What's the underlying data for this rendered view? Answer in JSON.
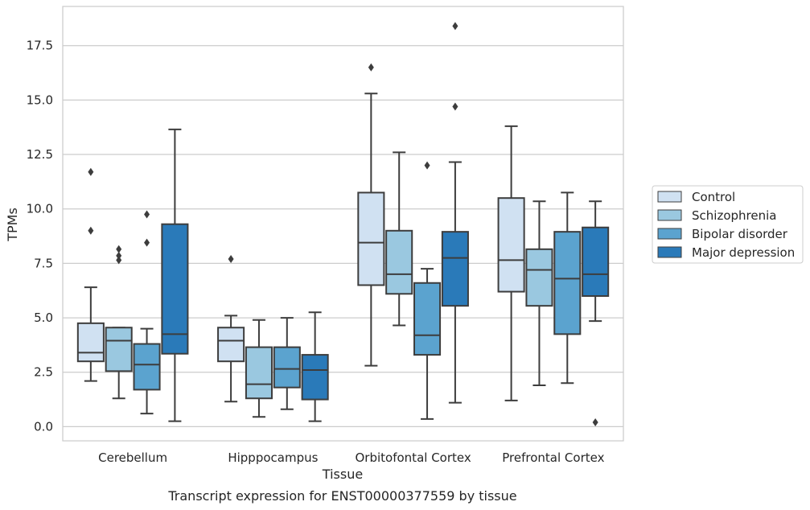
{
  "caption": "Transcript expression for ENST00000377559 by tissue",
  "chart_data": {
    "type": "box",
    "xlabel": "Tissue",
    "ylabel": "TPMs",
    "ylim": [
      -0.65,
      19.3
    ],
    "yticks": [
      0.0,
      2.5,
      5.0,
      7.5,
      10.0,
      12.5,
      15.0,
      17.5
    ],
    "ytick_labels": [
      "0.0",
      "2.5",
      "5.0",
      "7.5",
      "10.0",
      "12.5",
      "15.0",
      "17.5"
    ],
    "grid": "horizontal",
    "legend_position": "right",
    "categories": [
      "Cerebellum",
      "Hipppocampus",
      "Orbitofontal Cortex",
      "Prefrontal Cortex"
    ],
    "series": [
      {
        "name": "Control",
        "color": "#d0e1f2",
        "boxes": [
          {
            "whislo": 2.1,
            "q1": 3.0,
            "med": 3.4,
            "q3": 4.75,
            "whishi": 6.4,
            "fliers": [
              9.0,
              11.7
            ]
          },
          {
            "whislo": 1.15,
            "q1": 3.0,
            "med": 3.95,
            "q3": 4.55,
            "whishi": 5.1,
            "fliers": [
              7.7
            ]
          },
          {
            "whislo": 2.8,
            "q1": 6.5,
            "med": 8.45,
            "q3": 10.75,
            "whishi": 15.3,
            "fliers": [
              16.5
            ]
          },
          {
            "whislo": 1.2,
            "q1": 6.2,
            "med": 7.65,
            "q3": 10.5,
            "whishi": 13.8,
            "fliers": []
          }
        ]
      },
      {
        "name": "Schizophrenia",
        "color": "#9ac8e0",
        "boxes": [
          {
            "whislo": 1.3,
            "q1": 2.55,
            "med": 3.95,
            "q3": 4.55,
            "whishi": 4.55,
            "fliers": [
              7.65,
              7.85,
              8.15
            ]
          },
          {
            "whislo": 0.45,
            "q1": 1.3,
            "med": 1.95,
            "q3": 3.65,
            "whishi": 4.9,
            "fliers": []
          },
          {
            "whislo": 4.65,
            "q1": 6.1,
            "med": 7.0,
            "q3": 9.0,
            "whishi": 12.6,
            "fliers": []
          },
          {
            "whislo": 1.9,
            "q1": 5.55,
            "med": 7.2,
            "q3": 8.15,
            "whishi": 10.35,
            "fliers": []
          }
        ]
      },
      {
        "name": "Bipolar disorder",
        "color": "#5ba3cf",
        "boxes": [
          {
            "whislo": 0.6,
            "q1": 1.7,
            "med": 2.85,
            "q3": 3.8,
            "whishi": 4.5,
            "fliers": [
              8.45,
              9.75
            ]
          },
          {
            "whislo": 0.8,
            "q1": 1.8,
            "med": 2.65,
            "q3": 3.65,
            "whishi": 5.0,
            "fliers": []
          },
          {
            "whislo": 0.35,
            "q1": 3.3,
            "med": 4.2,
            "q3": 6.6,
            "whishi": 7.25,
            "fliers": [
              12.0
            ]
          },
          {
            "whislo": 2.0,
            "q1": 4.25,
            "med": 6.8,
            "q3": 8.95,
            "whishi": 10.75,
            "fliers": []
          }
        ]
      },
      {
        "name": "Major depression",
        "color": "#2a7ab9",
        "boxes": [
          {
            "whislo": 0.25,
            "q1": 3.35,
            "med": 4.25,
            "q3": 9.3,
            "whishi": 13.65,
            "fliers": []
          },
          {
            "whislo": 0.25,
            "q1": 1.25,
            "med": 2.6,
            "q3": 3.3,
            "whishi": 5.25,
            "fliers": []
          },
          {
            "whislo": 1.1,
            "q1": 5.55,
            "med": 7.75,
            "q3": 8.95,
            "whishi": 12.15,
            "fliers": [
              14.7,
              18.4
            ]
          },
          {
            "whislo": 4.85,
            "q1": 6.0,
            "med": 7.0,
            "q3": 9.15,
            "whishi": 10.35,
            "fliers": [
              0.2
            ]
          }
        ]
      }
    ]
  }
}
